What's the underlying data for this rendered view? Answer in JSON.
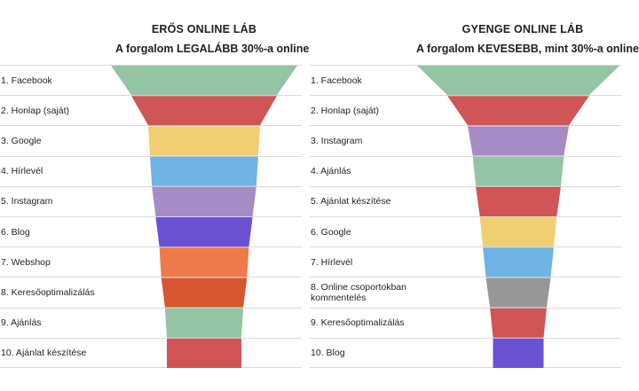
{
  "chart_data": [
    {
      "type": "funnel",
      "title": "ERŐS ONLINE LÁB",
      "subtitle": "A forgalom LEGALÁBB 30%-a online",
      "categories": [
        "1. Facebook",
        "2. Honlap (saját)",
        "3. Google",
        "4. Hírlevél",
        "5. Instagram",
        "6. Blog",
        "7. Webshop",
        "8. Keresőoptimalizálás",
        "9. Ajánlás",
        "10. Ajánlat készítése"
      ],
      "values": [
        100,
        78,
        60,
        58,
        56,
        52,
        48,
        46,
        42,
        40
      ],
      "colors": [
        "#93c4a3",
        "#cf5556",
        "#f0cf72",
        "#6fb2e4",
        "#a68cc6",
        "#6a52d3",
        "#ee7a49",
        "#d7562f",
        "#93c4a3",
        "#cf5556"
      ]
    },
    {
      "type": "funnel",
      "title": "GYENGE ONLINE LÁB",
      "subtitle": "A forgalom KEVESEBB, mint 30%-a online",
      "categories": [
        "1. Facebook",
        "2. Honlap (saját)",
        "3. Instagram",
        "4. Ajánlás",
        "5. Ajánlat készítése",
        "6. Google",
        "7. Hírlevél",
        "8. Online csoportokban kommentelés",
        "9. Keresőoptimalizálás",
        "10. Blog"
      ],
      "values": [
        100,
        70,
        50,
        45,
        42,
        38,
        35,
        32,
        28,
        25
      ],
      "colors": [
        "#93c4a3",
        "#cf5556",
        "#a68cc6",
        "#93c4a3",
        "#cf5556",
        "#f0cf72",
        "#6fb2e4",
        "#979797",
        "#cf5556",
        "#6a52d3"
      ]
    }
  ]
}
